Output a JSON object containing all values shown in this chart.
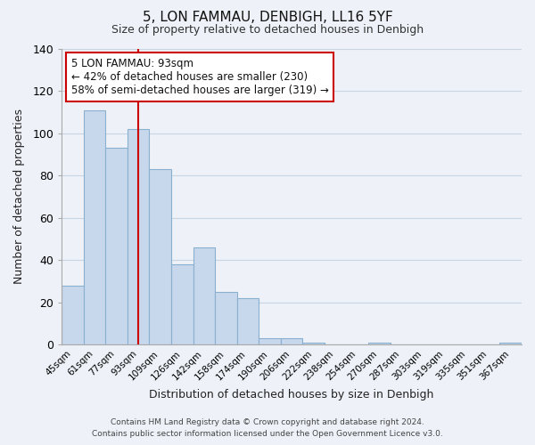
{
  "title": "5, LON FAMMAU, DENBIGH, LL16 5YF",
  "subtitle": "Size of property relative to detached houses in Denbigh",
  "xlabel": "Distribution of detached houses by size in Denbigh",
  "ylabel": "Number of detached properties",
  "bar_labels": [
    "45sqm",
    "61sqm",
    "77sqm",
    "93sqm",
    "109sqm",
    "126sqm",
    "142sqm",
    "158sqm",
    "174sqm",
    "190sqm",
    "206sqm",
    "222sqm",
    "238sqm",
    "254sqm",
    "270sqm",
    "287sqm",
    "303sqm",
    "319sqm",
    "335sqm",
    "351sqm",
    "367sqm"
  ],
  "bar_values": [
    28,
    111,
    93,
    102,
    83,
    38,
    46,
    25,
    22,
    3,
    3,
    1,
    0,
    0,
    1,
    0,
    0,
    0,
    0,
    0,
    1
  ],
  "bar_color": "#c8d8ec",
  "bar_edge_color": "#8ab0d0",
  "vline_x_index": 3,
  "vline_color": "#cc0000",
  "annotation_title": "5 LON FAMMAU: 93sqm",
  "annotation_line1": "← 42% of detached houses are smaller (230)",
  "annotation_line2": "58% of semi-detached houses are larger (319) →",
  "annotation_border_color": "#cc0000",
  "annotation_bg_color": "#ffffff",
  "ylim": [
    0,
    140
  ],
  "yticks": [
    0,
    20,
    40,
    60,
    80,
    100,
    120,
    140
  ],
  "footer_line1": "Contains HM Land Registry data © Crown copyright and database right 2024.",
  "footer_line2": "Contains public sector information licensed under the Open Government Licence v3.0.",
  "bg_color": "#eef2f8",
  "plot_bg_color": "#eef2f8",
  "grid_color": "#c8d4e4"
}
